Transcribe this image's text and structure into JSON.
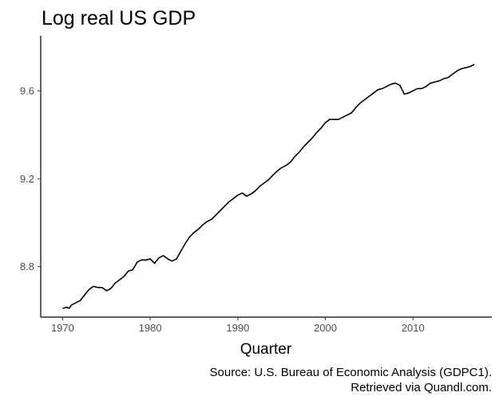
{
  "chart_data": {
    "type": "line",
    "title": "Log real US GDP",
    "xlabel": "Quarter",
    "ylabel": "",
    "xlim": [
      1967.5,
      2019
    ],
    "ylim": [
      8.57,
      9.85
    ],
    "xticks": [
      1970,
      1980,
      1990,
      2000,
      2010
    ],
    "yticks": [
      8.8,
      9.2,
      9.6
    ],
    "ytick_labels": [
      "8.8",
      "9.2",
      "9.6"
    ],
    "grid": false,
    "caption": [
      "Source: U.S. Bureau of Economic Analysis (GDPC1).",
      "Retrieved via Quandl.com."
    ],
    "series": [
      {
        "name": "Log real US GDP",
        "color": "#000000",
        "points": [
          [
            1970.0,
            8.61
          ],
          [
            1970.5,
            8.615
          ],
          [
            1970.75,
            8.61
          ],
          [
            1971.0,
            8.625
          ],
          [
            1971.5,
            8.635
          ],
          [
            1972.0,
            8.645
          ],
          [
            1972.5,
            8.67
          ],
          [
            1973.0,
            8.695
          ],
          [
            1973.5,
            8.71
          ],
          [
            1974.0,
            8.705
          ],
          [
            1974.5,
            8.705
          ],
          [
            1975.0,
            8.69
          ],
          [
            1975.5,
            8.7
          ],
          [
            1976.0,
            8.725
          ],
          [
            1976.5,
            8.74
          ],
          [
            1977.0,
            8.755
          ],
          [
            1977.5,
            8.78
          ],
          [
            1978.0,
            8.785
          ],
          [
            1978.5,
            8.82
          ],
          [
            1979.0,
            8.83
          ],
          [
            1979.5,
            8.83
          ],
          [
            1980.0,
            8.835
          ],
          [
            1980.5,
            8.815
          ],
          [
            1981.0,
            8.84
          ],
          [
            1981.5,
            8.85
          ],
          [
            1982.0,
            8.835
          ],
          [
            1982.5,
            8.825
          ],
          [
            1983.0,
            8.835
          ],
          [
            1983.5,
            8.87
          ],
          [
            1984.0,
            8.905
          ],
          [
            1984.5,
            8.935
          ],
          [
            1985.0,
            8.955
          ],
          [
            1985.5,
            8.97
          ],
          [
            1986.0,
            8.99
          ],
          [
            1986.5,
            9.005
          ],
          [
            1987.0,
            9.015
          ],
          [
            1987.5,
            9.035
          ],
          [
            1988.0,
            9.055
          ],
          [
            1988.5,
            9.075
          ],
          [
            1989.0,
            9.095
          ],
          [
            1989.5,
            9.11
          ],
          [
            1990.0,
            9.125
          ],
          [
            1990.5,
            9.135
          ],
          [
            1991.0,
            9.12
          ],
          [
            1991.5,
            9.13
          ],
          [
            1992.0,
            9.145
          ],
          [
            1992.5,
            9.165
          ],
          [
            1993.0,
            9.18
          ],
          [
            1993.5,
            9.195
          ],
          [
            1994.0,
            9.215
          ],
          [
            1994.5,
            9.235
          ],
          [
            1995.0,
            9.25
          ],
          [
            1995.5,
            9.26
          ],
          [
            1996.0,
            9.275
          ],
          [
            1996.5,
            9.3
          ],
          [
            1997.0,
            9.32
          ],
          [
            1997.5,
            9.345
          ],
          [
            1998.0,
            9.365
          ],
          [
            1998.5,
            9.385
          ],
          [
            1999.0,
            9.41
          ],
          [
            1999.5,
            9.43
          ],
          [
            2000.0,
            9.455
          ],
          [
            2000.5,
            9.47
          ],
          [
            2001.0,
            9.47
          ],
          [
            2001.5,
            9.47
          ],
          [
            2002.0,
            9.48
          ],
          [
            2002.5,
            9.49
          ],
          [
            2003.0,
            9.5
          ],
          [
            2003.5,
            9.525
          ],
          [
            2004.0,
            9.545
          ],
          [
            2004.5,
            9.56
          ],
          [
            2005.0,
            9.575
          ],
          [
            2005.5,
            9.59
          ],
          [
            2006.0,
            9.605
          ],
          [
            2006.5,
            9.61
          ],
          [
            2007.0,
            9.62
          ],
          [
            2007.5,
            9.63
          ],
          [
            2008.0,
            9.635
          ],
          [
            2008.5,
            9.625
          ],
          [
            2008.75,
            9.605
          ],
          [
            2009.0,
            9.585
          ],
          [
            2009.5,
            9.59
          ],
          [
            2010.0,
            9.6
          ],
          [
            2010.5,
            9.61
          ],
          [
            2011.0,
            9.61
          ],
          [
            2011.5,
            9.62
          ],
          [
            2012.0,
            9.635
          ],
          [
            2012.5,
            9.64
          ],
          [
            2013.0,
            9.645
          ],
          [
            2013.5,
            9.655
          ],
          [
            2014.0,
            9.66
          ],
          [
            2014.5,
            9.675
          ],
          [
            2015.0,
            9.69
          ],
          [
            2015.5,
            9.7
          ],
          [
            2016.0,
            9.705
          ],
          [
            2016.5,
            9.71
          ],
          [
            2017.0,
            9.72
          ]
        ]
      }
    ]
  }
}
